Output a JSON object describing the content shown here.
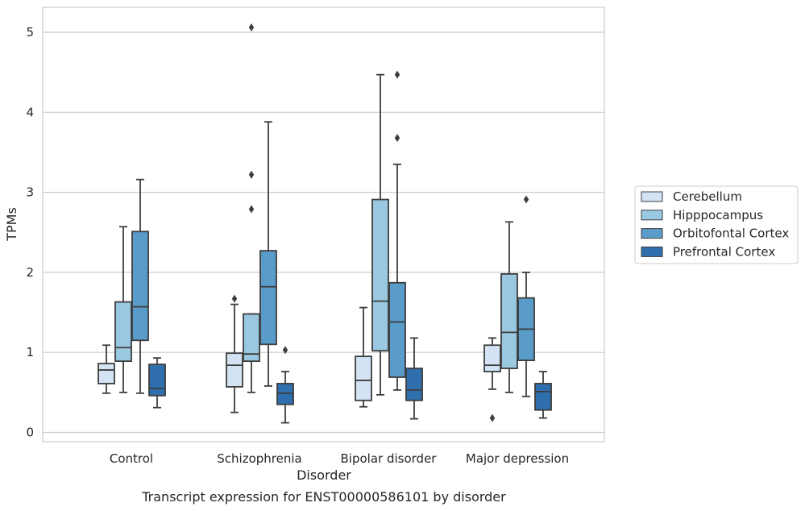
{
  "caption": "Transcript expression for ENST00000586101 by disorder",
  "chart_data": {
    "type": "boxplot",
    "title": "",
    "xlabel": "Disorder",
    "ylabel": "TPMs",
    "ylim": [
      -0.1,
      5.3
    ],
    "yticks": [
      0,
      1,
      2,
      3,
      4,
      5
    ],
    "grid": "horizontal",
    "legend_position": "right",
    "categories": [
      "Control",
      "Schizophrenia",
      "Bipolar disorder",
      "Major depression"
    ],
    "series": [
      {
        "name": "Cerebellum",
        "color": "#d3e3f3",
        "boxes": [
          {
            "whislo": 0.49,
            "q1": 0.61,
            "med": 0.78,
            "q3": 0.86,
            "whishi": 1.09,
            "fliers": []
          },
          {
            "whislo": 0.25,
            "q1": 0.57,
            "med": 0.84,
            "q3": 0.99,
            "whishi": 1.6,
            "fliers": [
              1.67
            ]
          },
          {
            "whislo": 0.32,
            "q1": 0.4,
            "med": 0.65,
            "q3": 0.95,
            "whishi": 1.56,
            "fliers": []
          },
          {
            "whislo": 0.54,
            "q1": 0.76,
            "med": 0.84,
            "q3": 1.09,
            "whishi": 1.18,
            "fliers": [
              0.18
            ]
          }
        ]
      },
      {
        "name": "Hipppocampus",
        "color": "#9ac8e0",
        "boxes": [
          {
            "whislo": 0.5,
            "q1": 0.89,
            "med": 1.06,
            "q3": 1.63,
            "whishi": 2.57,
            "fliers": []
          },
          {
            "whislo": 0.5,
            "q1": 0.89,
            "med": 0.98,
            "q3": 1.48,
            "whishi": 1.48,
            "fliers": [
              2.79,
              3.22,
              5.06
            ]
          },
          {
            "whislo": 0.47,
            "q1": 1.02,
            "med": 1.64,
            "q3": 2.91,
            "whishi": 4.47,
            "fliers": []
          },
          {
            "whislo": 0.5,
            "q1": 0.8,
            "med": 1.25,
            "q3": 1.98,
            "whishi": 2.63,
            "fliers": []
          }
        ]
      },
      {
        "name": "Orbitofontal Cortex",
        "color": "#5a9cc9",
        "boxes": [
          {
            "whislo": 0.49,
            "q1": 1.15,
            "med": 1.57,
            "q3": 2.51,
            "whishi": 3.16,
            "fliers": []
          },
          {
            "whislo": 0.58,
            "q1": 1.1,
            "med": 1.82,
            "q3": 2.27,
            "whishi": 3.88,
            "fliers": []
          },
          {
            "whislo": 0.53,
            "q1": 0.69,
            "med": 1.38,
            "q3": 1.87,
            "whishi": 3.35,
            "fliers": [
              3.68,
              4.47
            ]
          },
          {
            "whislo": 0.45,
            "q1": 0.9,
            "med": 1.29,
            "q3": 1.68,
            "whishi": 2.0,
            "fliers": [
              2.91
            ]
          }
        ]
      },
      {
        "name": "Prefrontal Cortex",
        "color": "#2f6fae",
        "boxes": [
          {
            "whislo": 0.31,
            "q1": 0.46,
            "med": 0.55,
            "q3": 0.85,
            "whishi": 0.93,
            "fliers": []
          },
          {
            "whislo": 0.12,
            "q1": 0.35,
            "med": 0.49,
            "q3": 0.61,
            "whishi": 0.76,
            "fliers": [
              1.03
            ]
          },
          {
            "whislo": 0.17,
            "q1": 0.4,
            "med": 0.53,
            "q3": 0.8,
            "whishi": 1.18,
            "fliers": []
          },
          {
            "whislo": 0.18,
            "q1": 0.28,
            "med": 0.51,
            "q3": 0.61,
            "whishi": 0.76,
            "fliers": []
          }
        ]
      }
    ]
  }
}
